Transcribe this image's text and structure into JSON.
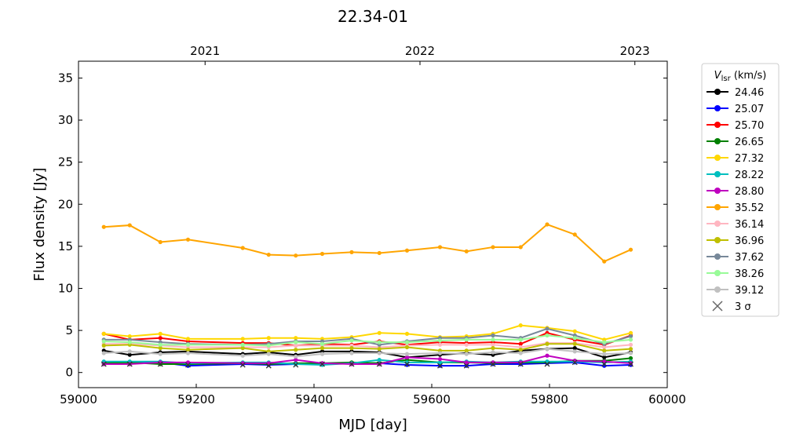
{
  "chart_data": {
    "type": "line",
    "title": "22.34-01",
    "xlabel": "MJD [day]",
    "ylabel": "Flux density [Jy]",
    "xlim": [
      59000,
      60000
    ],
    "ylim": [
      -1.8,
      37
    ],
    "x_ticks": [
      "59000",
      "59200",
      "59400",
      "59600",
      "59800",
      "60000"
    ],
    "y_ticks": [
      "0",
      "5",
      "10",
      "15",
      "20",
      "25",
      "30",
      "35"
    ],
    "top_axis": {
      "ticks": [
        {
          "x": 59215,
          "label": "2021"
        },
        {
          "x": 59580,
          "label": "2022"
        },
        {
          "x": 59945,
          "label": "2023"
        }
      ]
    },
    "legend": {
      "title_main": "V",
      "title_sub": "lsr",
      "title_unit": " (km/s)",
      "placement": "outside-right",
      "sigma_label": "3 σ"
    },
    "x": [
      59043,
      59087,
      59139,
      59186,
      59279,
      59323,
      59369,
      59414,
      59464,
      59511,
      59558,
      59614,
      59659,
      59704,
      59751,
      59796,
      59843,
      59893,
      59938
    ],
    "series": [
      {
        "name": "24.46",
        "color": "#000000",
        "values": [
          2.6,
          2.1,
          2.4,
          2.5,
          2.2,
          2.4,
          2.1,
          2.5,
          2.5,
          2.4,
          1.8,
          2.1,
          2.3,
          2.1,
          2.6,
          2.8,
          2.9,
          1.8,
          2.4
        ]
      },
      {
        "name": "25.07",
        "color": "#0000ff",
        "values": [
          1.1,
          1.1,
          1.2,
          0.8,
          1.0,
          0.9,
          1.0,
          1.0,
          1.1,
          1.1,
          0.9,
          0.8,
          0.8,
          1.0,
          1.0,
          1.1,
          1.2,
          0.8,
          0.9
        ]
      },
      {
        "name": "25.70",
        "color": "#ff0000",
        "values": [
          4.6,
          3.9,
          4.1,
          3.7,
          3.5,
          3.5,
          3.2,
          3.4,
          3.3,
          3.7,
          3.3,
          3.6,
          3.5,
          3.6,
          3.4,
          4.7,
          3.9,
          3.3,
          4.4
        ]
      },
      {
        "name": "26.65",
        "color": "#008000",
        "values": [
          1.1,
          1.2,
          1.0,
          1.0,
          1.1,
          1.0,
          1.1,
          1.1,
          1.2,
          1.1,
          1.5,
          1.2,
          1.2,
          1.1,
          1.2,
          1.2,
          1.4,
          1.4,
          1.7
        ]
      },
      {
        "name": "27.32",
        "color": "#ffd700",
        "values": [
          4.6,
          4.3,
          4.6,
          4.0,
          4.0,
          4.1,
          4.1,
          4.0,
          4.2,
          4.7,
          4.6,
          4.2,
          4.3,
          4.6,
          5.6,
          5.3,
          4.9,
          3.9,
          4.7
        ]
      },
      {
        "name": "28.22",
        "color": "#00bfbf",
        "values": [
          1.3,
          1.3,
          1.3,
          1.1,
          1.2,
          1.2,
          1.0,
          0.9,
          1.1,
          1.5,
          1.2,
          1.2,
          1.3,
          1.2,
          1.3,
          1.3,
          1.3,
          1.2,
          1.3
        ]
      },
      {
        "name": "28.80",
        "color": "#bf00bf",
        "values": [
          1.0,
          1.0,
          1.2,
          1.2,
          1.1,
          1.1,
          1.5,
          1.1,
          1.0,
          1.0,
          1.8,
          1.6,
          1.2,
          1.2,
          1.2,
          2.0,
          1.4,
          1.3,
          1.1
        ]
      },
      {
        "name": "35.52",
        "color": "#ffa500",
        "values": [
          17.3,
          17.5,
          15.5,
          15.8,
          14.8,
          14.0,
          13.9,
          14.1,
          14.3,
          14.2,
          14.5,
          14.9,
          14.4,
          14.9,
          14.9,
          17.6,
          16.4,
          13.2,
          14.6
        ]
      },
      {
        "name": "36.14",
        "color": "#ffb6c1",
        "values": [
          3.4,
          3.4,
          3.2,
          3.0,
          3.0,
          3.0,
          3.2,
          3.2,
          3.2,
          3.0,
          3.2,
          3.3,
          3.3,
          3.3,
          3.0,
          3.5,
          3.5,
          3.0,
          3.3
        ]
      },
      {
        "name": "36.96",
        "color": "#bfbf00",
        "values": [
          3.2,
          3.3,
          2.9,
          2.7,
          2.9,
          2.5,
          2.7,
          2.9,
          2.9,
          2.8,
          3.0,
          2.6,
          2.6,
          2.9,
          2.7,
          3.4,
          3.4,
          2.6,
          2.8
        ]
      },
      {
        "name": "37.62",
        "color": "#778899",
        "values": [
          3.9,
          3.9,
          3.6,
          3.4,
          3.3,
          3.4,
          3.7,
          3.7,
          4.0,
          3.3,
          3.7,
          4.1,
          4.1,
          4.4,
          4.1,
          5.2,
          4.4,
          3.4,
          4.3
        ]
      },
      {
        "name": "38.26",
        "color": "#98fb98",
        "values": [
          3.7,
          3.6,
          3.3,
          3.3,
          3.3,
          3.2,
          3.6,
          3.4,
          3.8,
          3.6,
          3.6,
          3.8,
          3.9,
          3.9,
          3.9,
          4.4,
          4.1,
          3.6,
          3.9
        ]
      },
      {
        "name": "39.12",
        "color": "#c0c0c0",
        "values": [
          2.3,
          2.5,
          2.2,
          2.3,
          2.0,
          2.2,
          1.9,
          2.2,
          2.3,
          2.3,
          2.2,
          2.3,
          2.2,
          2.4,
          2.3,
          2.8,
          2.5,
          2.2,
          2.3
        ]
      }
    ],
    "sigma_markers": {
      "name": "3 σ",
      "color": "#333333",
      "values": [
        1.0,
        1.0,
        1.0,
        0.9,
        0.9,
        0.8,
        0.9,
        1.0,
        1.0,
        1.0,
        1.0,
        0.8,
        0.8,
        1.0,
        1.0,
        1.0,
        1.2,
        1.0,
        1.0
      ]
    }
  }
}
